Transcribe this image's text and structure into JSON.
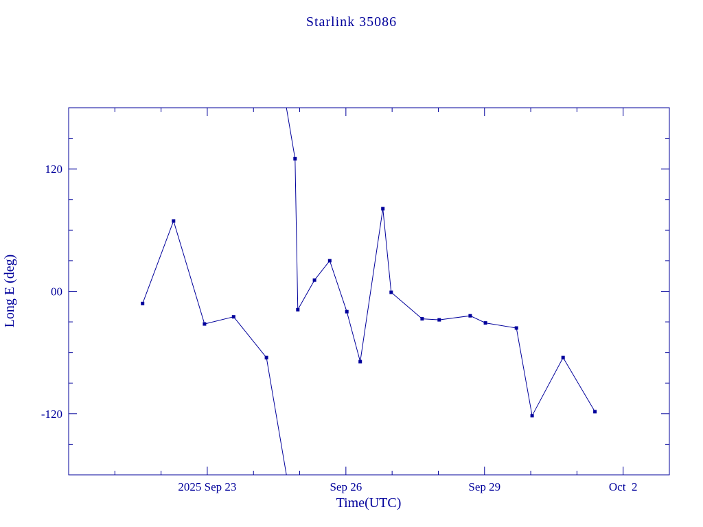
{
  "colors": {
    "ink": "#00009b",
    "background": "#ffffff"
  },
  "chart_data": {
    "type": "line",
    "title": "Starlink 35086",
    "xlabel": "Time(UTC)",
    "ylabel": "Long E (deg)",
    "x_axis": {
      "unit": "day of 2025 (Sep continuing into Oct)",
      "min_day": 20,
      "max_day": 33,
      "minor_step": 1,
      "major_ticks": [
        {
          "day": 23,
          "label": "2025 Sep 23"
        },
        {
          "day": 26,
          "label": "Sep 26"
        },
        {
          "day": 29,
          "label": "Sep 29"
        },
        {
          "day": 32,
          "label": "Oct  2"
        }
      ]
    },
    "y_axis": {
      "min": -180,
      "max": 180,
      "minor_step": 30,
      "major_ticks": [
        {
          "value": 120,
          "label": "120"
        },
        {
          "value": 0,
          "label": "00"
        },
        {
          "value": -120,
          "label": "-120"
        }
      ]
    },
    "wrap_degrees": 360,
    "points": [
      {
        "day": 21.6,
        "lon": -12
      },
      {
        "day": 22.27,
        "lon": 69
      },
      {
        "day": 22.94,
        "lon": -32
      },
      {
        "day": 23.57,
        "lon": -25
      },
      {
        "day": 24.28,
        "lon": -65
      },
      {
        "day": 24.9,
        "lon": 130
      },
      {
        "day": 24.96,
        "lon": -18
      },
      {
        "day": 25.32,
        "lon": 11
      },
      {
        "day": 25.65,
        "lon": 30
      },
      {
        "day": 26.02,
        "lon": -20
      },
      {
        "day": 26.31,
        "lon": -69
      },
      {
        "day": 26.8,
        "lon": 81
      },
      {
        "day": 26.98,
        "lon": -1
      },
      {
        "day": 27.65,
        "lon": -27
      },
      {
        "day": 28.02,
        "lon": -28
      },
      {
        "day": 28.69,
        "lon": -24
      },
      {
        "day": 29.02,
        "lon": -31
      },
      {
        "day": 29.69,
        "lon": -36
      },
      {
        "day": 30.03,
        "lon": -122
      },
      {
        "day": 30.7,
        "lon": -65
      },
      {
        "day": 31.39,
        "lon": -118
      }
    ]
  }
}
